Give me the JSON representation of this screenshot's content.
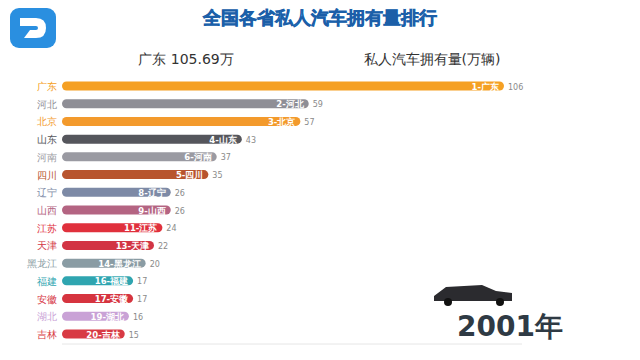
{
  "chart_data": {
    "type": "bar",
    "orientation": "horizontal",
    "title": "全国各省私人汽车拥有量排行",
    "subtitle": "广东 105.69万",
    "xlabel": "私人汽车拥有量(万辆)",
    "annotation": "2001年",
    "categories": [
      "广东",
      "河北",
      "北京",
      "山东",
      "河南",
      "四川",
      "辽宁",
      "山西",
      "江苏",
      "天津",
      "黑龙江",
      "福建",
      "安徽",
      "湖北",
      "吉林"
    ],
    "bar_labels": [
      "1-广东",
      "2-河北",
      "3-北京",
      "4-山东",
      "6-河南",
      "5-四川",
      "8-辽宁",
      "9-山西",
      "11-江苏",
      "13-天津",
      "14-黑龙江",
      "16-福建",
      "17-安徽",
      "19-湖北",
      "20-吉林"
    ],
    "values": [
      105.69,
      59,
      57,
      43,
      37,
      35,
      26,
      26,
      24,
      22,
      20,
      17,
      17,
      16,
      15
    ],
    "value_labels": [
      "106",
      "59",
      "57",
      "43",
      "37",
      "35",
      "26",
      "26",
      "24",
      "22",
      "20",
      "17",
      "17",
      "16",
      "15"
    ],
    "colors": [
      "#f5a023",
      "#8e8e96",
      "#f39a2c",
      "#55565c",
      "#9a9aa2",
      "#b8542e",
      "#7d8aa6",
      "#b46482",
      "#e0303c",
      "#d23444",
      "#8a9ca4",
      "#2fa5b0",
      "#d6343f",
      "#c9a2d6",
      "#d83a44"
    ],
    "xlim": [
      0,
      110
    ],
    "data_labels": true,
    "tick_labels": false,
    "grid": false
  }
}
